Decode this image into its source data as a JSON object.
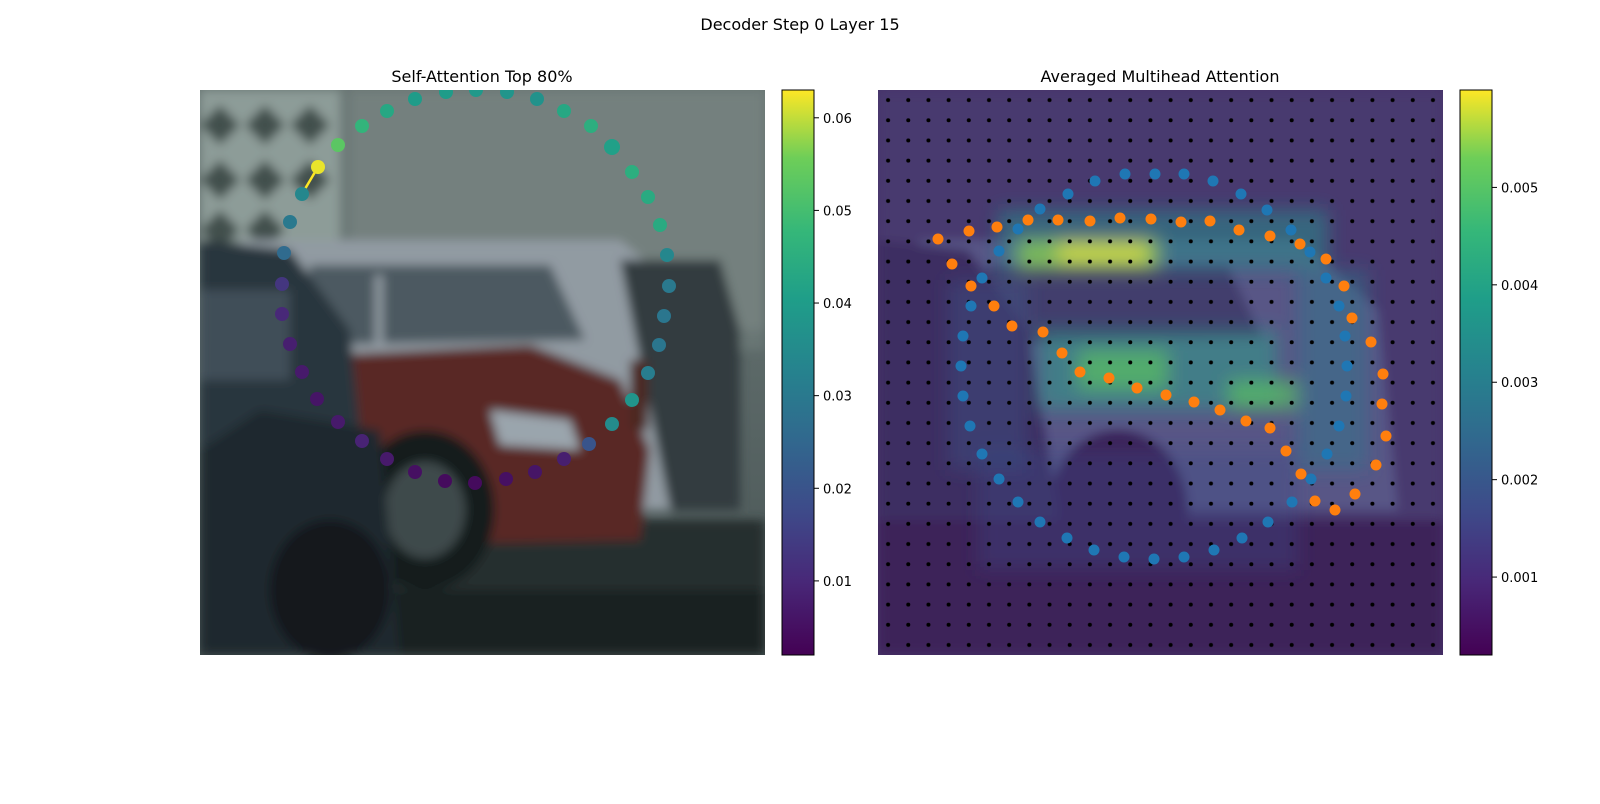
{
  "figure": {
    "suptitle": "Decoder Step 0 Layer 15"
  },
  "chart_data": [
    {
      "type": "scatter",
      "title": "Self-Attention Top 80%",
      "background": "blurred photo of parked cars (white hatchback, red car) in front of a building",
      "colormap": "viridis",
      "colorbar": {
        "ticks": [
          "0.01",
          "0.02",
          "0.03",
          "0.04",
          "0.05",
          "0.06"
        ],
        "tick_values": [
          0.01,
          0.02,
          0.03,
          0.04,
          0.05,
          0.06
        ],
        "range": [
          0.002,
          0.063
        ]
      },
      "query_point_index": 5,
      "points": [
        {
          "x": 276,
          "y": 0,
          "v": 0.039
        },
        {
          "x": 307,
          "y": 2,
          "v": 0.038
        },
        {
          "x": 337,
          "y": 9,
          "v": 0.037
        },
        {
          "x": 364,
          "y": 21,
          "v": 0.043
        },
        {
          "x": 391,
          "y": 36,
          "v": 0.045
        },
        {
          "x": 412,
          "y": 57,
          "v": 0.041
        },
        {
          "x": 432,
          "y": 82,
          "v": 0.045
        },
        {
          "x": 448,
          "y": 107,
          "v": 0.044
        },
        {
          "x": 460,
          "y": 135,
          "v": 0.044
        },
        {
          "x": 467,
          "y": 165,
          "v": 0.034
        },
        {
          "x": 469,
          "y": 196,
          "v": 0.03
        },
        {
          "x": 464,
          "y": 226,
          "v": 0.029
        },
        {
          "x": 459,
          "y": 255,
          "v": 0.029
        },
        {
          "x": 448,
          "y": 283,
          "v": 0.031
        },
        {
          "x": 432,
          "y": 310,
          "v": 0.038
        },
        {
          "x": 412,
          "y": 334,
          "v": 0.035
        },
        {
          "x": 389,
          "y": 354,
          "v": 0.02
        },
        {
          "x": 364,
          "y": 369,
          "v": 0.008
        },
        {
          "x": 335,
          "y": 382,
          "v": 0.006
        },
        {
          "x": 306,
          "y": 389,
          "v": 0.005
        },
        {
          "x": 275,
          "y": 393,
          "v": 0.004
        },
        {
          "x": 245,
          "y": 391,
          "v": 0.004
        },
        {
          "x": 215,
          "y": 382,
          "v": 0.005
        },
        {
          "x": 187,
          "y": 369,
          "v": 0.007
        },
        {
          "x": 162,
          "y": 351,
          "v": 0.009
        },
        {
          "x": 138,
          "y": 332,
          "v": 0.007
        },
        {
          "x": 117,
          "y": 309,
          "v": 0.006
        },
        {
          "x": 102,
          "y": 282,
          "v": 0.007
        },
        {
          "x": 90,
          "y": 254,
          "v": 0.008
        },
        {
          "x": 82,
          "y": 224,
          "v": 0.01
        },
        {
          "x": 82,
          "y": 194,
          "v": 0.013
        },
        {
          "x": 84,
          "y": 163,
          "v": 0.026
        },
        {
          "x": 90,
          "y": 132,
          "v": 0.03
        },
        {
          "x": 102,
          "y": 104,
          "v": 0.034
        },
        {
          "x": 118,
          "y": 77,
          "v": 0.062
        },
        {
          "x": 138,
          "y": 55,
          "v": 0.053
        },
        {
          "x": 162,
          "y": 36,
          "v": 0.047
        },
        {
          "x": 187,
          "y": 21,
          "v": 0.043
        },
        {
          "x": 215,
          "y": 9,
          "v": 0.04
        },
        {
          "x": 246,
          "y": 2,
          "v": 0.04
        }
      ]
    },
    {
      "type": "heatmap",
      "title": "Averaged Multihead Attention",
      "background": "blurred photo of parked cars with attention heatmap overlay",
      "colormap": "viridis",
      "colorbar": {
        "ticks": [
          "0.001",
          "0.002",
          "0.003",
          "0.004",
          "0.005"
        ],
        "tick_values": [
          0.001,
          0.002,
          0.003,
          0.004,
          0.005
        ],
        "range": [
          0.0002,
          0.006
        ]
      },
      "grid": "28 x 28 patches with black dots at centers",
      "series": [
        {
          "color": "#1f77b4",
          "points": [
            {
              "x": 277,
              "y": 84
            },
            {
              "x": 247,
              "y": 84
            },
            {
              "x": 217,
              "y": 91
            },
            {
              "x": 190,
              "y": 104
            },
            {
              "x": 162,
              "y": 119
            },
            {
              "x": 140,
              "y": 139
            },
            {
              "x": 121,
              "y": 161
            },
            {
              "x": 104,
              "y": 188
            },
            {
              "x": 93,
              "y": 216
            },
            {
              "x": 85,
              "y": 246
            },
            {
              "x": 83,
              "y": 276
            },
            {
              "x": 85,
              "y": 306
            },
            {
              "x": 92,
              "y": 336
            },
            {
              "x": 104,
              "y": 364
            },
            {
              "x": 121,
              "y": 389
            },
            {
              "x": 140,
              "y": 412
            },
            {
              "x": 162,
              "y": 432
            },
            {
              "x": 189,
              "y": 448
            },
            {
              "x": 216,
              "y": 460
            },
            {
              "x": 246,
              "y": 467
            },
            {
              "x": 276,
              "y": 469
            },
            {
              "x": 306,
              "y": 467
            },
            {
              "x": 336,
              "y": 460
            },
            {
              "x": 364,
              "y": 448
            },
            {
              "x": 390,
              "y": 432
            },
            {
              "x": 414,
              "y": 412
            },
            {
              "x": 433,
              "y": 389
            },
            {
              "x": 449,
              "y": 364
            },
            {
              "x": 461,
              "y": 336
            },
            {
              "x": 468,
              "y": 306
            },
            {
              "x": 469,
              "y": 276
            },
            {
              "x": 467,
              "y": 246
            },
            {
              "x": 461,
              "y": 216
            },
            {
              "x": 448,
              "y": 188
            },
            {
              "x": 432,
              "y": 162
            },
            {
              "x": 413,
              "y": 140
            },
            {
              "x": 389,
              "y": 120
            },
            {
              "x": 363,
              "y": 104
            },
            {
              "x": 335,
              "y": 91
            },
            {
              "x": 306,
              "y": 84
            }
          ]
        },
        {
          "color": "#ff7f0e",
          "points": [
            {
              "x": 60,
              "y": 149
            },
            {
              "x": 74,
              "y": 174
            },
            {
              "x": 93,
              "y": 196
            },
            {
              "x": 116,
              "y": 216
            },
            {
              "x": 134,
              "y": 236
            },
            {
              "x": 165,
              "y": 242
            },
            {
              "x": 184,
              "y": 263
            },
            {
              "x": 202,
              "y": 282
            },
            {
              "x": 231,
              "y": 288
            },
            {
              "x": 259,
              "y": 298
            },
            {
              "x": 288,
              "y": 305
            },
            {
              "x": 316,
              "y": 312
            },
            {
              "x": 342,
              "y": 320
            },
            {
              "x": 368,
              "y": 331
            },
            {
              "x": 392,
              "y": 338
            },
            {
              "x": 408,
              "y": 361
            },
            {
              "x": 423,
              "y": 384
            },
            {
              "x": 437,
              "y": 411
            },
            {
              "x": 457,
              "y": 420
            },
            {
              "x": 477,
              "y": 404
            },
            {
              "x": 498,
              "y": 375
            },
            {
              "x": 508,
              "y": 346
            },
            {
              "x": 504,
              "y": 314
            },
            {
              "x": 505,
              "y": 284
            },
            {
              "x": 493,
              "y": 252
            },
            {
              "x": 474,
              "y": 228
            },
            {
              "x": 466,
              "y": 196
            },
            {
              "x": 448,
              "y": 169
            },
            {
              "x": 422,
              "y": 154
            },
            {
              "x": 392,
              "y": 146
            },
            {
              "x": 361,
              "y": 140
            },
            {
              "x": 332,
              "y": 131
            },
            {
              "x": 303,
              "y": 132
            },
            {
              "x": 273,
              "y": 129
            },
            {
              "x": 242,
              "y": 128
            },
            {
              "x": 212,
              "y": 131
            },
            {
              "x": 180,
              "y": 130
            },
            {
              "x": 150,
              "y": 130
            },
            {
              "x": 119,
              "y": 137
            },
            {
              "x": 91,
              "y": 141
            }
          ]
        }
      ]
    }
  ]
}
